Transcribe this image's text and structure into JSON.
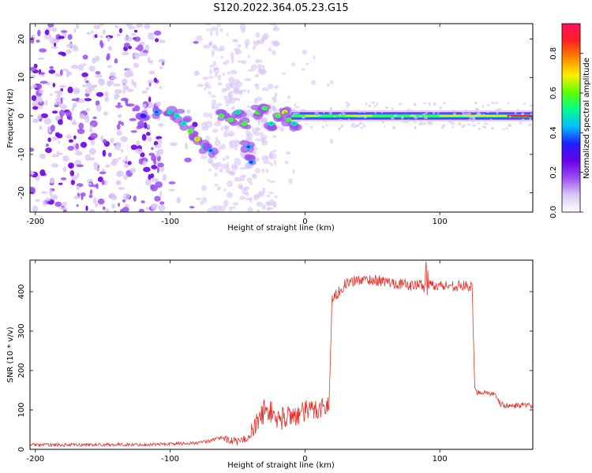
{
  "figure_title": "S120.2022.364.05.23.G15",
  "colors": {
    "snr_line": "#e8302a",
    "axis": "#000000",
    "colormap": [
      "#ffffff",
      "#d9c7f5",
      "#9a4ef0",
      "#6a00e8",
      "#2020ff",
      "#00bfff",
      "#00ff90",
      "#60ff00",
      "#ffee00",
      "#ff8800",
      "#ff2020",
      "#ff1060"
    ]
  },
  "chart_data": [
    {
      "type": "heatmap",
      "title": "",
      "xlabel": "Height of straight line (km)",
      "ylabel": "Frequency (Hz)",
      "xlim": [
        -204,
        169
      ],
      "ylim": [
        -25,
        24
      ],
      "xticks": [
        -200,
        -100,
        0,
        100
      ],
      "yticks": [
        -20,
        -10,
        0,
        10,
        20
      ],
      "colorbar": {
        "label": "Normalized spectral amplitude",
        "range": [
          0,
          0.95
        ],
        "ticks": [
          0.0,
          0.2,
          0.4,
          0.6,
          0.8
        ]
      },
      "features": {
        "noise_region_x": [
          -204,
          -60
        ],
        "track_start_x": -120,
        "steady_track_start_x": -10,
        "track_end_x": 169,
        "track_frequency": 0
      }
    },
    {
      "type": "line",
      "title": "",
      "xlabel": "Height of straight line (km)",
      "ylabel": "SNR (10 * v/v)",
      "xlim": [
        -204,
        169
      ],
      "ylim": [
        0,
        480
      ],
      "xticks": [
        -200,
        -100,
        0,
        100
      ],
      "yticks": [
        0,
        100,
        200,
        300,
        400
      ],
      "series": [
        {
          "x": [
            -204,
            -180,
            -150,
            -120,
            -100,
            -80,
            -70,
            -62,
            -50,
            -40,
            -35,
            -30,
            -25,
            -20,
            -15,
            -10,
            -5,
            0,
            5,
            10,
            15,
            18,
            19,
            20,
            25,
            30,
            40,
            50,
            60,
            70,
            80,
            89,
            90,
            91,
            100,
            110,
            120,
            124,
            126,
            128,
            135,
            140,
            145,
            150,
            160,
            169
          ],
          "y": [
            12,
            11,
            12,
            12,
            14,
            16,
            22,
            30,
            18,
            35,
            70,
            100,
            95,
            75,
            80,
            90,
            85,
            95,
            100,
            105,
            110,
            110,
            250,
            380,
            400,
            420,
            430,
            430,
            425,
            420,
            415,
            420,
            450,
            420,
            415,
            415,
            415,
            410,
            150,
            145,
            145,
            140,
            115,
            110,
            112,
            110
          ]
        }
      ]
    }
  ]
}
